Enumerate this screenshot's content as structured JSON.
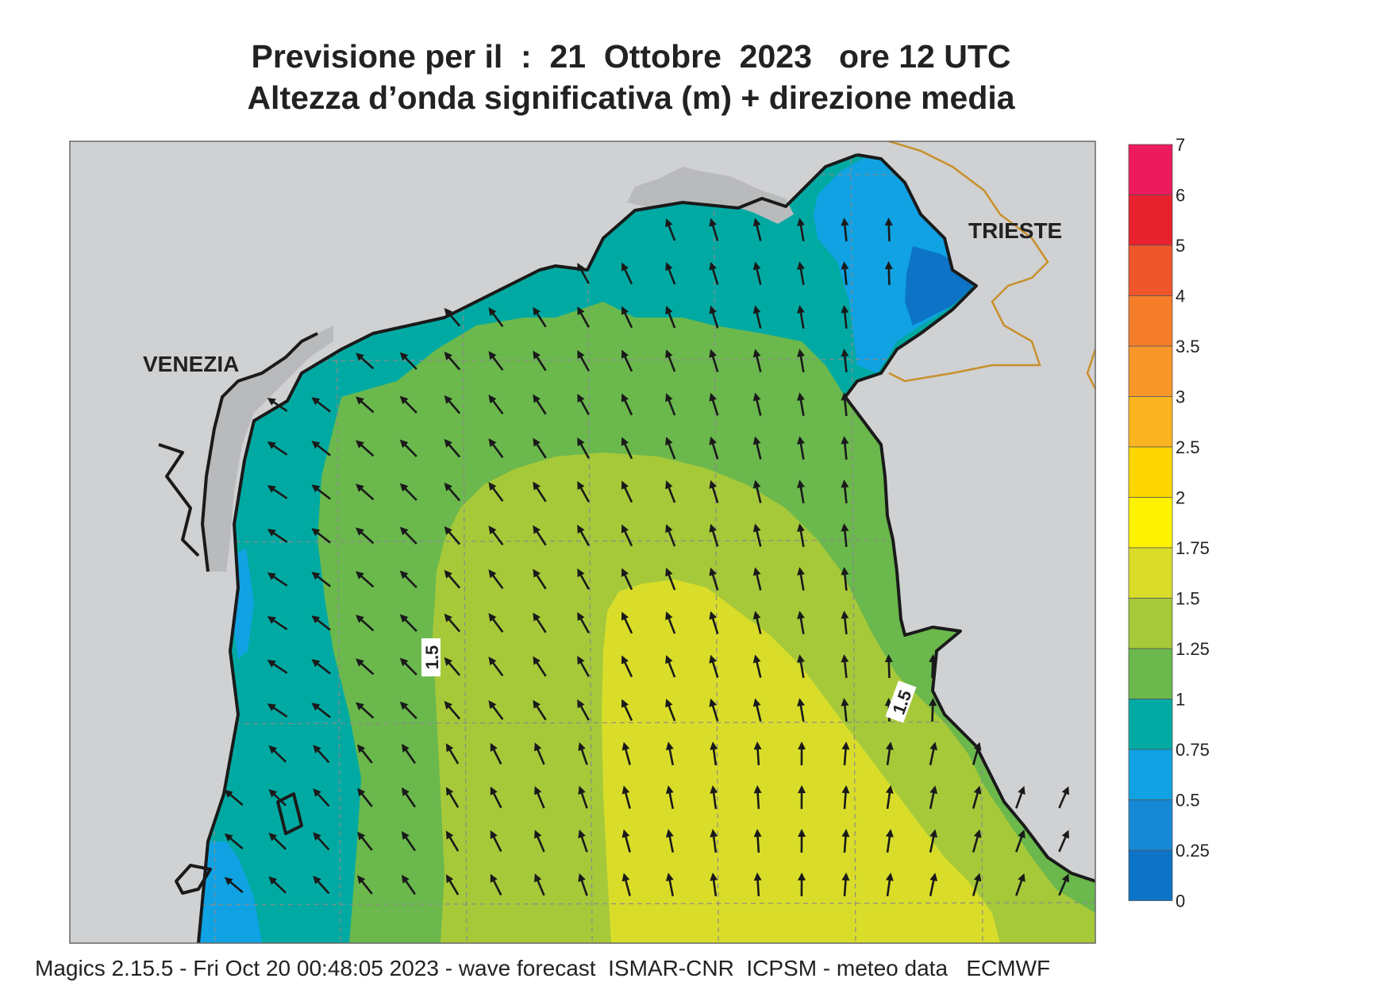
{
  "title": {
    "line1": "Previsione per il  :  21  Ottobre  2023   ore 12 UTC",
    "line2": "Altezza d’onda significativa (m) + direzione media"
  },
  "map": {
    "cities": [
      {
        "name": "VENEZIA"
      },
      {
        "name": "TRIESTE"
      }
    ],
    "contour_labels": [
      "1.5",
      "1.5"
    ],
    "colors": {
      "land": "#d0d1d3",
      "lagoon": "#b9babc",
      "coast": "#1a1a1a",
      "border": "#c8902a",
      "grid": "#8a8a8a",
      "arrow": "#1a1a1a"
    },
    "dominant_wave_direction": "toward north / north-west",
    "units": "m"
  },
  "legend": {
    "levels": [
      {
        "value": "7",
        "color": "#ee1a5e"
      },
      {
        "value": "6",
        "color": "#e8212e"
      },
      {
        "value": "5",
        "color": "#f0562b"
      },
      {
        "value": "4",
        "color": "#f57d2a"
      },
      {
        "value": "3.5",
        "color": "#f8962a"
      },
      {
        "value": "3",
        "color": "#fbb521"
      },
      {
        "value": "2.5",
        "color": "#fdd600"
      },
      {
        "value": "2",
        "color": "#fff200"
      },
      {
        "value": "1.75",
        "color": "#d9dd2a"
      },
      {
        "value": "1.5",
        "color": "#a6c93a"
      },
      {
        "value": "1.25",
        "color": "#6bb84d"
      },
      {
        "value": "1",
        "color": "#00aaa3"
      },
      {
        "value": "0.75",
        "color": "#10a2e3"
      },
      {
        "value": "0.5",
        "color": "#1589d6"
      },
      {
        "value": "0.25",
        "color": "#0c73c6"
      },
      {
        "value": "0",
        "color": "#0a5fb4"
      }
    ]
  },
  "footer": {
    "text": "Magics 2.15.5 - Fri Oct 20 00:48:05 2023 - wave forecast  ISMAR-CNR  ICPSM - meteo data   ECMWF"
  }
}
